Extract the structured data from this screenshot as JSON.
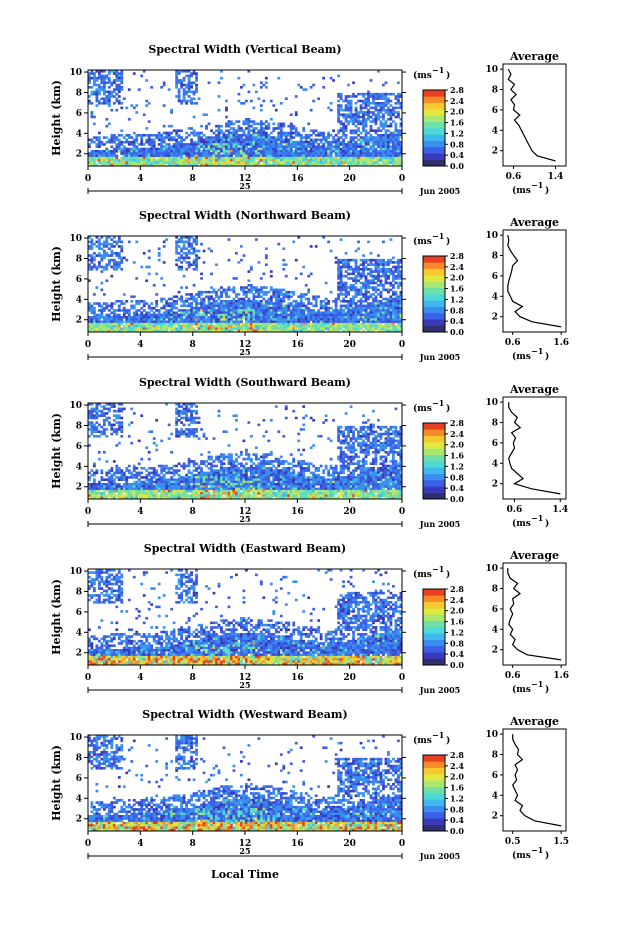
{
  "figure": {
    "x_axis_label": "Local Time",
    "month_label": "Jun 2005",
    "day_label": "25",
    "y_axis_label": "Height (km)",
    "colorbar_unit": "(ms",
    "colorbar_exponent": "−1",
    "colorbar_unit_close": ")",
    "average_title": "Average",
    "average_unit": "(ms",
    "average_unit_exp": "−1",
    "average_unit_close": ")"
  },
  "colors": {
    "scale": [
      "#303070",
      "#3a3ab8",
      "#3b5fe6",
      "#3a8ef0",
      "#3fb8f0",
      "#4fd8d8",
      "#6fe0a8",
      "#a8e870",
      "#e0e840",
      "#f8c830",
      "#f88a28",
      "#e84020"
    ]
  },
  "chart_data": [
    {
      "type": "heatmap",
      "title": "Spectral Width (Vertical Beam)",
      "xlabel": "",
      "ylabel": "Height (km)",
      "x_ticks": [
        "0",
        "4",
        "8",
        "12",
        "16",
        "20",
        "0"
      ],
      "y_ticks": [
        "2",
        "4",
        "6",
        "8",
        "10"
      ],
      "xlim": [
        0,
        24
      ],
      "ylim": [
        0.8,
        10.2
      ],
      "colorbar_ticks": [
        "2.8",
        "2.4",
        "2.0",
        "1.6",
        "1.2",
        "0.8",
        "0.4",
        "0.0"
      ],
      "colorbar_range": [
        0.0,
        2.8
      ],
      "average_profile": {
        "x_ticks": [
          "0.6",
          "1.4"
        ],
        "xlim": [
          0.4,
          1.6
        ],
        "heights": [
          1,
          1.5,
          2,
          2.5,
          3,
          3.5,
          4,
          4.5,
          5,
          5.5,
          6,
          6.5,
          7,
          7.5,
          8,
          8.5,
          9,
          9.5,
          10
        ],
        "values": [
          1.4,
          1.05,
          0.95,
          0.9,
          0.85,
          0.8,
          0.75,
          0.7,
          0.62,
          0.72,
          0.6,
          0.62,
          0.55,
          0.65,
          0.55,
          0.62,
          0.5,
          0.55,
          0.5
        ]
      }
    },
    {
      "type": "heatmap",
      "title": "Spectral Width (Northward Beam)",
      "xlabel": "",
      "ylabel": "Height (km)",
      "x_ticks": [
        "0",
        "4",
        "8",
        "12",
        "16",
        "20",
        "0"
      ],
      "y_ticks": [
        "2",
        "4",
        "6",
        "8",
        "10"
      ],
      "xlim": [
        0,
        24
      ],
      "ylim": [
        0.8,
        10.2
      ],
      "colorbar_ticks": [
        "2.8",
        "2.4",
        "2.0",
        "1.6",
        "1.2",
        "0.8",
        "0.4",
        "0.0"
      ],
      "colorbar_range": [
        0.0,
        2.8
      ],
      "average_profile": {
        "x_ticks": [
          "0.6",
          "1.6"
        ],
        "xlim": [
          0.4,
          1.7
        ],
        "heights": [
          1,
          1.5,
          2,
          2.5,
          3,
          3.5,
          4,
          4.5,
          5,
          5.5,
          6,
          6.5,
          7,
          7.5,
          8,
          8.5,
          9,
          9.5,
          10
        ],
        "values": [
          1.6,
          1.0,
          0.75,
          0.65,
          0.8,
          0.6,
          0.55,
          0.5,
          0.5,
          0.52,
          0.55,
          0.58,
          0.6,
          0.7,
          0.62,
          0.55,
          0.5,
          0.52,
          0.5
        ]
      }
    },
    {
      "type": "heatmap",
      "title": "Spectral Width (Southward Beam)",
      "xlabel": "",
      "ylabel": "Height (km)",
      "x_ticks": [
        "0",
        "4",
        "8",
        "12",
        "16",
        "20",
        "0"
      ],
      "y_ticks": [
        "2",
        "4",
        "6",
        "8",
        "10"
      ],
      "xlim": [
        0,
        24
      ],
      "ylim": [
        0.8,
        10.2
      ],
      "colorbar_ticks": [
        "2.8",
        "2.4",
        "2.0",
        "1.6",
        "1.2",
        "0.8",
        "0.4",
        "0.0"
      ],
      "colorbar_range": [
        0.0,
        2.8
      ],
      "average_profile": {
        "x_ticks": [
          "0.6",
          "1.4"
        ],
        "xlim": [
          0.4,
          1.5
        ],
        "heights": [
          1,
          1.5,
          2,
          2.5,
          3,
          3.5,
          4,
          4.5,
          5,
          5.5,
          6,
          6.5,
          7,
          7.5,
          8,
          8.5,
          9,
          9.5,
          10
        ],
        "values": [
          1.4,
          0.9,
          0.6,
          0.75,
          0.65,
          0.55,
          0.52,
          0.5,
          0.55,
          0.6,
          0.58,
          0.62,
          0.55,
          0.7,
          0.6,
          0.65,
          0.55,
          0.5,
          0.5
        ]
      }
    },
    {
      "type": "heatmap",
      "title": "Spectral Width (Eastward Beam)",
      "xlabel": "",
      "ylabel": "Height (km)",
      "x_ticks": [
        "0",
        "4",
        "8",
        "12",
        "16",
        "20",
        "0"
      ],
      "y_ticks": [
        "2",
        "4",
        "6",
        "8",
        "10"
      ],
      "xlim": [
        0,
        24
      ],
      "ylim": [
        0.8,
        10.2
      ],
      "colorbar_ticks": [
        "2.8",
        "2.4",
        "2.0",
        "1.6",
        "1.2",
        "0.8",
        "0.4",
        "0.0"
      ],
      "colorbar_range": [
        0.0,
        2.8
      ],
      "average_profile": {
        "x_ticks": [
          "0.6",
          "1.6"
        ],
        "xlim": [
          0.4,
          1.7
        ],
        "heights": [
          1,
          1.5,
          2,
          2.5,
          3,
          3.5,
          4,
          4.5,
          5,
          5.5,
          6,
          6.5,
          7,
          7.5,
          8,
          8.5,
          9,
          9.5,
          10
        ],
        "values": [
          1.6,
          0.9,
          0.7,
          0.6,
          0.65,
          0.55,
          0.6,
          0.52,
          0.55,
          0.6,
          0.55,
          0.62,
          0.6,
          0.75,
          0.62,
          0.7,
          0.55,
          0.5,
          0.5
        ]
      }
    },
    {
      "type": "heatmap",
      "title": "Spectral Width (Westward Beam)",
      "xlabel": "Local Time",
      "ylabel": "Height (km)",
      "x_ticks": [
        "0",
        "4",
        "8",
        "12",
        "16",
        "20",
        "0"
      ],
      "y_ticks": [
        "2",
        "4",
        "6",
        "8",
        "10"
      ],
      "xlim": [
        0,
        24
      ],
      "ylim": [
        0.8,
        10.2
      ],
      "colorbar_ticks": [
        "2.8",
        "2.4",
        "2.0",
        "1.6",
        "1.2",
        "0.8",
        "0.4",
        "0.0"
      ],
      "colorbar_range": [
        0.0,
        2.8
      ],
      "average_profile": {
        "x_ticks": [
          "0.5",
          "1.5"
        ],
        "xlim": [
          0.3,
          1.6
        ],
        "heights": [
          1,
          1.5,
          2,
          2.5,
          3,
          3.5,
          4,
          4.5,
          5,
          5.5,
          6,
          6.5,
          7,
          7.5,
          8,
          8.5,
          9,
          9.5,
          10
        ],
        "values": [
          1.5,
          0.95,
          0.75,
          0.65,
          0.7,
          0.55,
          0.6,
          0.55,
          0.5,
          0.58,
          0.55,
          0.6,
          0.55,
          0.7,
          0.6,
          0.62,
          0.55,
          0.5,
          0.5
        ]
      }
    }
  ]
}
